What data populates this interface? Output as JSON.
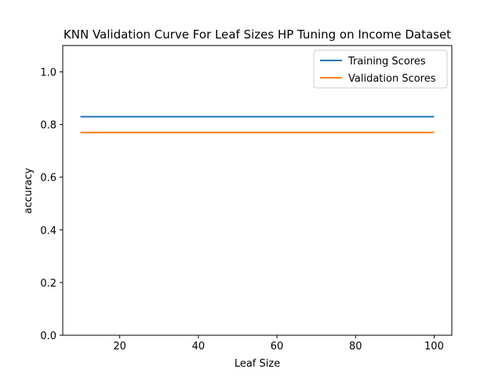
{
  "chart_data": {
    "type": "line",
    "title": "KNN Validation Curve For Leaf Sizes HP Tuning on Income Dataset",
    "xlabel": "Leaf Size",
    "ylabel": "accuracy",
    "x": [
      10,
      20,
      30,
      40,
      50,
      60,
      70,
      80,
      90,
      100
    ],
    "xlim": [
      5.5,
      104.5
    ],
    "ylim": [
      0,
      1.1
    ],
    "x_ticks": [
      20,
      40,
      60,
      80,
      100
    ],
    "x_tick_labels": [
      "20",
      "40",
      "60",
      "80",
      "100"
    ],
    "y_ticks": [
      0.0,
      0.2,
      0.4,
      0.6,
      0.8,
      1.0
    ],
    "y_tick_labels": [
      "0.0",
      "0.2",
      "0.4",
      "0.6",
      "0.8",
      "1.0"
    ],
    "grid": false,
    "legend_position": "top-right",
    "series": [
      {
        "name": "Training Scores",
        "color": "#1f77b4",
        "values": [
          0.83,
          0.83,
          0.83,
          0.83,
          0.83,
          0.83,
          0.83,
          0.83,
          0.83,
          0.83
        ]
      },
      {
        "name": "Validation Scores",
        "color": "#ff7f0e",
        "values": [
          0.77,
          0.77,
          0.77,
          0.77,
          0.77,
          0.77,
          0.77,
          0.77,
          0.77,
          0.77
        ]
      }
    ]
  }
}
